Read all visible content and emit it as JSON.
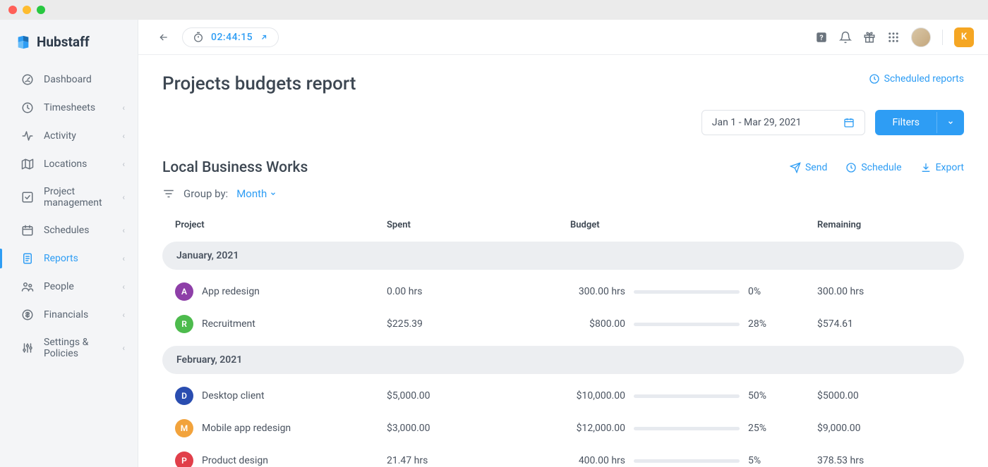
{
  "brand": {
    "name": "Hubstaff"
  },
  "window": {
    "traffic_colors": [
      "#ff5f57",
      "#febc2e",
      "#28c840"
    ]
  },
  "topbar": {
    "timer": "02:44:15",
    "avatar_letter": "K",
    "avatar_bg": "#f5a623"
  },
  "sidebar": {
    "items": [
      {
        "label": "Dashboard",
        "icon": "dashboard",
        "expandable": false,
        "active": false
      },
      {
        "label": "Timesheets",
        "icon": "clock",
        "expandable": true,
        "active": false
      },
      {
        "label": "Activity",
        "icon": "activity",
        "expandable": true,
        "active": false
      },
      {
        "label": "Locations",
        "icon": "map",
        "expandable": true,
        "active": false
      },
      {
        "label": "Project management",
        "icon": "check",
        "expandable": true,
        "active": false
      },
      {
        "label": "Schedules",
        "icon": "calendar",
        "expandable": true,
        "active": false
      },
      {
        "label": "Reports",
        "icon": "document",
        "expandable": true,
        "active": true
      },
      {
        "label": "People",
        "icon": "people",
        "expandable": true,
        "active": false
      },
      {
        "label": "Financials",
        "icon": "dollar",
        "expandable": true,
        "active": false
      },
      {
        "label": "Settings & Policies",
        "icon": "sliders",
        "expandable": true,
        "active": false
      }
    ]
  },
  "page": {
    "title": "Projects budgets report",
    "scheduled_reports_label": "Scheduled reports",
    "date_range": "Jan 1 - Mar 29, 2021",
    "filters_label": "Filters"
  },
  "section": {
    "title": "Local Business Works",
    "actions": {
      "send": "Send",
      "schedule": "Schedule",
      "export": "Export"
    },
    "groupby_label": "Group by:",
    "groupby_value": "Month"
  },
  "table": {
    "columns": {
      "project": "Project",
      "spent": "Spent",
      "budget": "Budget",
      "remaining": "Remaining"
    },
    "groups": [
      {
        "header": "January, 2021",
        "rows": [
          {
            "badge": "A",
            "badge_color": "#8e3fa8",
            "name": "App redesign",
            "spent": "0.00 hrs",
            "budget": "300.00 hrs",
            "pct": 0,
            "pct_label": "0%",
            "remaining": "300.00 hrs"
          },
          {
            "badge": "R",
            "badge_color": "#4dbb4d",
            "name": "Recruitment",
            "spent": "$225.39",
            "budget": "$800.00",
            "pct": 28,
            "pct_label": "28%",
            "remaining": "$574.61"
          }
        ]
      },
      {
        "header": "February, 2021",
        "rows": [
          {
            "badge": "D",
            "badge_color": "#2a4db0",
            "name": "Desktop client",
            "spent": "$5,000.00",
            "budget": "$10,000.00",
            "pct": 50,
            "pct_label": "50%",
            "remaining": "$5000.00"
          },
          {
            "badge": "M",
            "badge_color": "#f2a33c",
            "name": "Mobile app redesign",
            "spent": "$3,000.00",
            "budget": "$12,000.00",
            "pct": 25,
            "pct_label": "25%",
            "remaining": "$9,000.00"
          },
          {
            "badge": "P",
            "badge_color": "#e13f4a",
            "name": "Product design",
            "spent": "21.47 hrs",
            "budget": "400.00 hrs",
            "pct": 5,
            "pct_label": "5%",
            "remaining": "378.53 hrs"
          }
        ]
      }
    ]
  },
  "colors": {
    "accent": "#2e9df4",
    "track": "#e7eaef",
    "group_bg": "#eceef1",
    "text": "#3d4752",
    "muted": "#5a6572"
  }
}
